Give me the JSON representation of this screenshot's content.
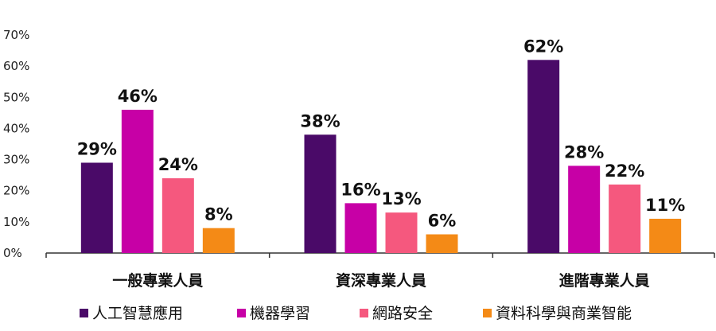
{
  "chart_data": {
    "type": "bar",
    "categories": [
      "一般專業人員",
      "資深專業人員",
      "進階專業人員"
    ],
    "series": [
      {
        "name": "人工智慧應用",
        "values": [
          29,
          38,
          62
        ],
        "color": "#4a0a68"
      },
      {
        "name": "機器學習",
        "values": [
          46,
          16,
          28
        ],
        "color": "#c700a6"
      },
      {
        "name": "網路安全",
        "values": [
          24,
          13,
          22
        ],
        "color": "#f5587e"
      },
      {
        "name": "資料科學與商業智能",
        "values": [
          8,
          6,
          11
        ],
        "color": "#f48a16"
      }
    ],
    "value_suffix": "%",
    "yticks": [
      "0%",
      "10%",
      "20%",
      "30%",
      "40%",
      "50%",
      "60%",
      "70%"
    ],
    "ylim": [
      0,
      70
    ],
    "grid": false,
    "legend_position": "bottom",
    "title": "",
    "xlabel": "",
    "ylabel": ""
  }
}
